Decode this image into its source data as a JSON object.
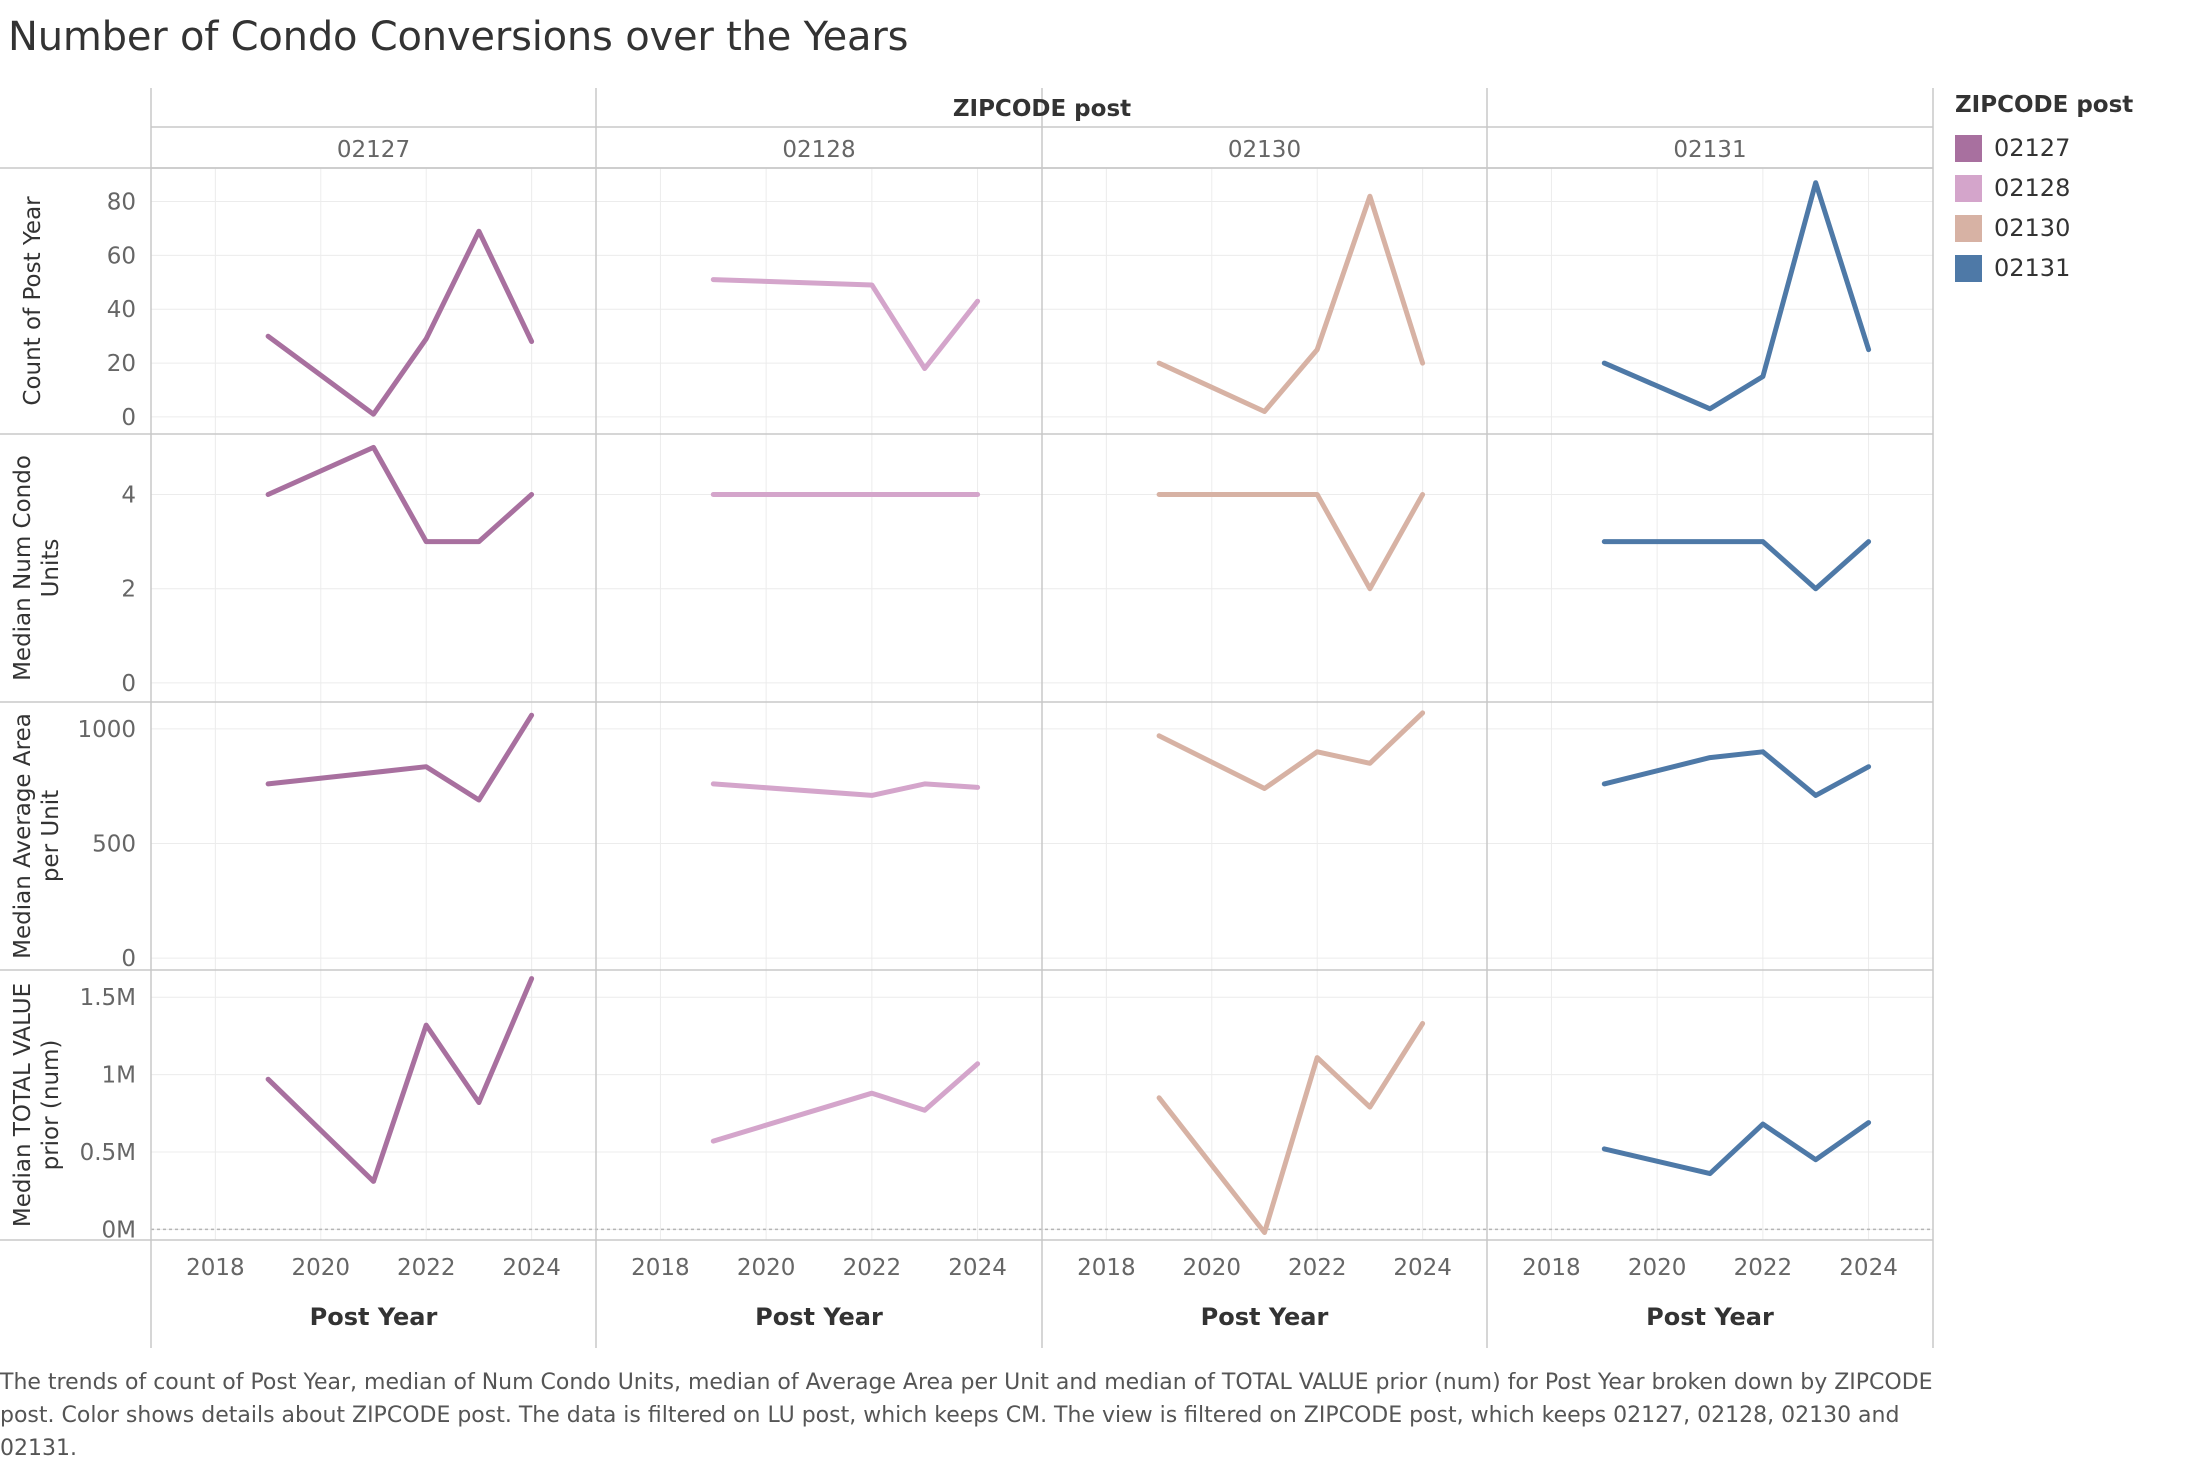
{
  "title": "Number of Condo Conversions over the Years",
  "caption": "The trends of count of Post Year, median of Num Condo Units, median of Average Area per Unit and median of TOTAL VALUE prior (num) for Post Year broken down by ZIPCODE post.  Color shows details about ZIPCODE post. The data is filtered on LU post, which keeps CM. The view is filtered on ZIPCODE post, which keeps 02127, 02128, 02130 and 02131.",
  "legend": {
    "title": "ZIPCODE post",
    "items": [
      {
        "label": "02127",
        "color": "#a8709f"
      },
      {
        "label": "02128",
        "color": "#d4a5cb"
      },
      {
        "label": "02130",
        "color": "#d7b2a4"
      },
      {
        "label": "02131",
        "color": "#4e79a7"
      }
    ]
  },
  "chart_data": {
    "type": "line",
    "column_header": "ZIPCODE post",
    "columns": [
      "02127",
      "02128",
      "02130",
      "02131"
    ],
    "colors": [
      "#a8709f",
      "#d4a5cb",
      "#d7b2a4",
      "#4e79a7"
    ],
    "xlabel": "Post Year",
    "xlim": [
      2017.5,
      2024.5
    ],
    "xticks": [
      2018,
      2020,
      2022,
      2024
    ],
    "xtick_labels": [
      "2018",
      "2020",
      "2022",
      "2024"
    ],
    "rows": [
      {
        "ylabel": [
          "Count of Post Year"
        ],
        "ylim": [
          -3,
          88
        ],
        "yticks": [
          0,
          20,
          40,
          60,
          80
        ],
        "ytick_labels": [
          "0",
          "20",
          "40",
          "60",
          "80"
        ],
        "series": [
          {
            "name": "02127",
            "x": [
              2019,
              2021,
              2022,
              2023,
              2024
            ],
            "y": [
              30,
              1,
              29,
              69,
              28
            ]
          },
          {
            "name": "02128",
            "x": [
              2019,
              2022,
              2023,
              2024
            ],
            "y": [
              51,
              49,
              18,
              43
            ]
          },
          {
            "name": "02130",
            "x": [
              2019,
              2021,
              2022,
              2023,
              2024
            ],
            "y": [
              20,
              2,
              25,
              82,
              20
            ]
          },
          {
            "name": "02131",
            "x": [
              2019,
              2021,
              2022,
              2023,
              2024
            ],
            "y": [
              20,
              3,
              15,
              87,
              25
            ]
          }
        ]
      },
      {
        "ylabel": [
          "Median Num Condo",
          "Units"
        ],
        "ylim": [
          -0.3,
          5.2
        ],
        "yticks": [
          0,
          2,
          4
        ],
        "ytick_labels": [
          "0",
          "2",
          "4"
        ],
        "series": [
          {
            "name": "02127",
            "x": [
              2019,
              2021,
              2022,
              2023,
              2024
            ],
            "y": [
              4,
              5,
              3,
              3,
              4
            ]
          },
          {
            "name": "02128",
            "x": [
              2019,
              2021,
              2022,
              2023,
              2024
            ],
            "y": [
              4,
              4,
              4,
              4,
              4
            ]
          },
          {
            "name": "02130",
            "x": [
              2019,
              2021,
              2022,
              2023,
              2024
            ],
            "y": [
              4,
              4,
              4,
              2,
              4
            ]
          },
          {
            "name": "02131",
            "x": [
              2019,
              2021,
              2022,
              2023,
              2024
            ],
            "y": [
              3,
              3,
              3,
              2,
              3
            ]
          }
        ]
      },
      {
        "ylabel": [
          "Median Average Area",
          "per Unit"
        ],
        "ylim": [
          -30,
          1100
        ],
        "yticks": [
          0,
          500,
          1000
        ],
        "ytick_labels": [
          "0",
          "500",
          "1000"
        ],
        "series": [
          {
            "name": "02127",
            "x": [
              2019,
              2021,
              2022,
              2023,
              2024
            ],
            "y": [
              760,
              810,
              835,
              690,
              1060
            ]
          },
          {
            "name": "02128",
            "x": [
              2019,
              2022,
              2023,
              2024
            ],
            "y": [
              760,
              710,
              760,
              745
            ]
          },
          {
            "name": "02130",
            "x": [
              2019,
              2021,
              2022,
              2023,
              2024
            ],
            "y": [
              970,
              740,
              900,
              850,
              1070
            ]
          },
          {
            "name": "02131",
            "x": [
              2019,
              2021,
              2022,
              2023,
              2024
            ],
            "y": [
              760,
              875,
              900,
              710,
              835
            ]
          }
        ]
      },
      {
        "ylabel": [
          "Median TOTAL VALUE",
          "prior (num)"
        ],
        "ylim": [
          -0.03,
          1.65
        ],
        "yticks": [
          0,
          0.5,
          1,
          1.5
        ],
        "ytick_labels": [
          "0M",
          "0.5M",
          "1M",
          "1.5M"
        ],
        "zero_reference_line": true,
        "series": [
          {
            "name": "02127",
            "x": [
              2019,
              2021,
              2022,
              2023,
              2024
            ],
            "y": [
              0.97,
              0.31,
              1.32,
              0.82,
              1.62
            ]
          },
          {
            "name": "02128",
            "x": [
              2019,
              2022,
              2023,
              2024
            ],
            "y": [
              0.57,
              0.88,
              0.77,
              1.07
            ]
          },
          {
            "name": "02130",
            "x": [
              2019,
              2021,
              2022,
              2023,
              2024
            ],
            "y": [
              0.85,
              -0.02,
              1.11,
              0.79,
              1.33
            ]
          },
          {
            "name": "02131",
            "x": [
              2019,
              2021,
              2022,
              2023,
              2024
            ],
            "y": [
              0.52,
              0.36,
              0.68,
              0.45,
              0.69
            ]
          }
        ]
      }
    ]
  }
}
